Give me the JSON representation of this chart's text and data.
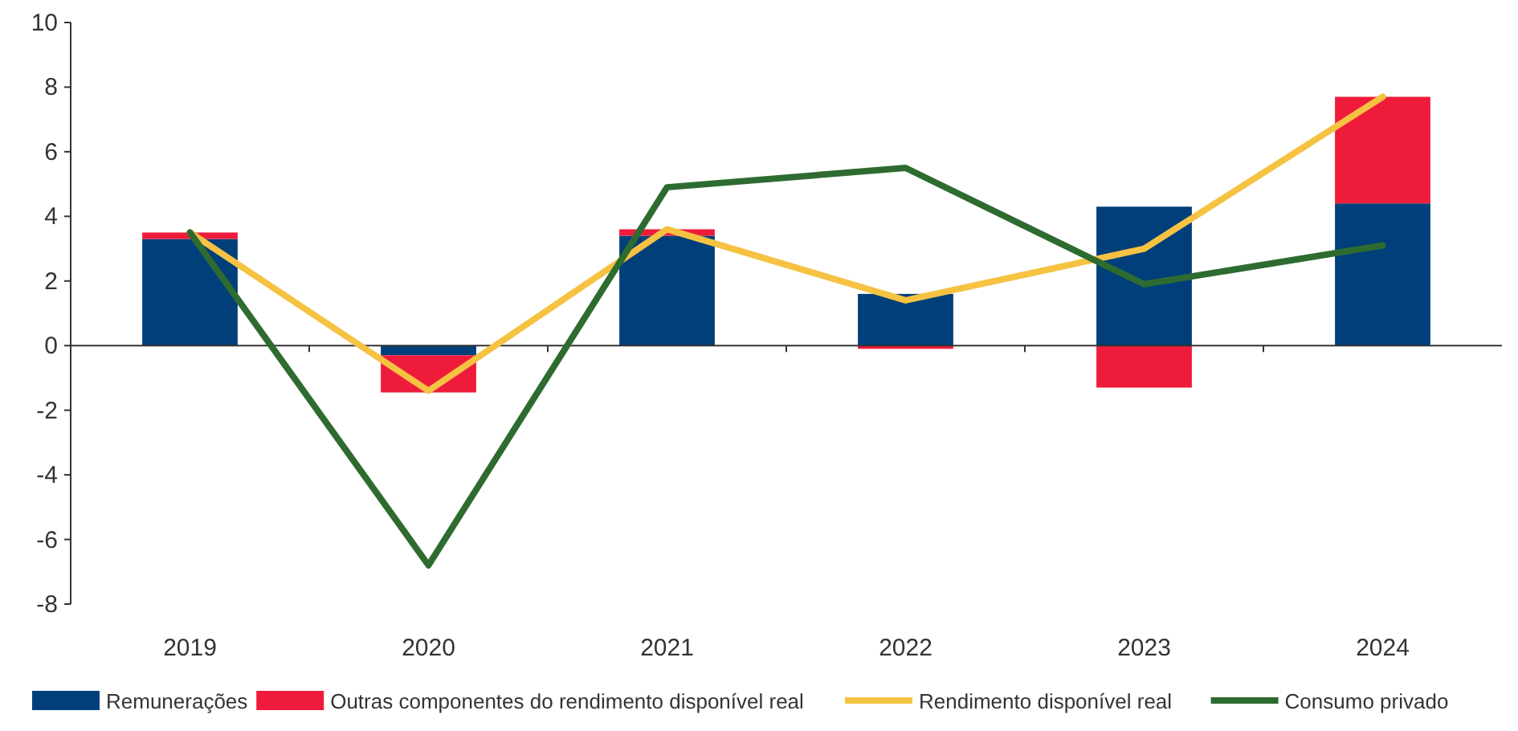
{
  "chart_data": {
    "type": "bar",
    "stacked": true,
    "categories": [
      "2019",
      "2020",
      "2021",
      "2022",
      "2023",
      "2024"
    ],
    "series": [
      {
        "name": "Remunerações",
        "color": "#003f7a",
        "values": [
          3.3,
          -0.3,
          3.4,
          1.6,
          4.3,
          4.4
        ]
      },
      {
        "name": "Outras componentes do rendimento disponível real",
        "color": "#ee1c3a",
        "values": [
          0.2,
          -1.15,
          0.2,
          -0.1,
          -1.3,
          3.3
        ]
      },
      {
        "name": "Rendimento disponível real",
        "type": "line",
        "color": "#f5c242",
        "values": [
          3.5,
          -1.4,
          3.6,
          1.4,
          3.0,
          7.7
        ]
      },
      {
        "name": "Consumo privado",
        "type": "line",
        "color": "#2e6b30",
        "values": [
          3.5,
          -6.8,
          4.9,
          5.5,
          1.9,
          3.1
        ]
      }
    ],
    "ylim": [
      -8,
      10
    ],
    "yticks": [
      -8,
      -6,
      -4,
      -2,
      0,
      2,
      4,
      6,
      8,
      10
    ],
    "legend": "bottom"
  }
}
